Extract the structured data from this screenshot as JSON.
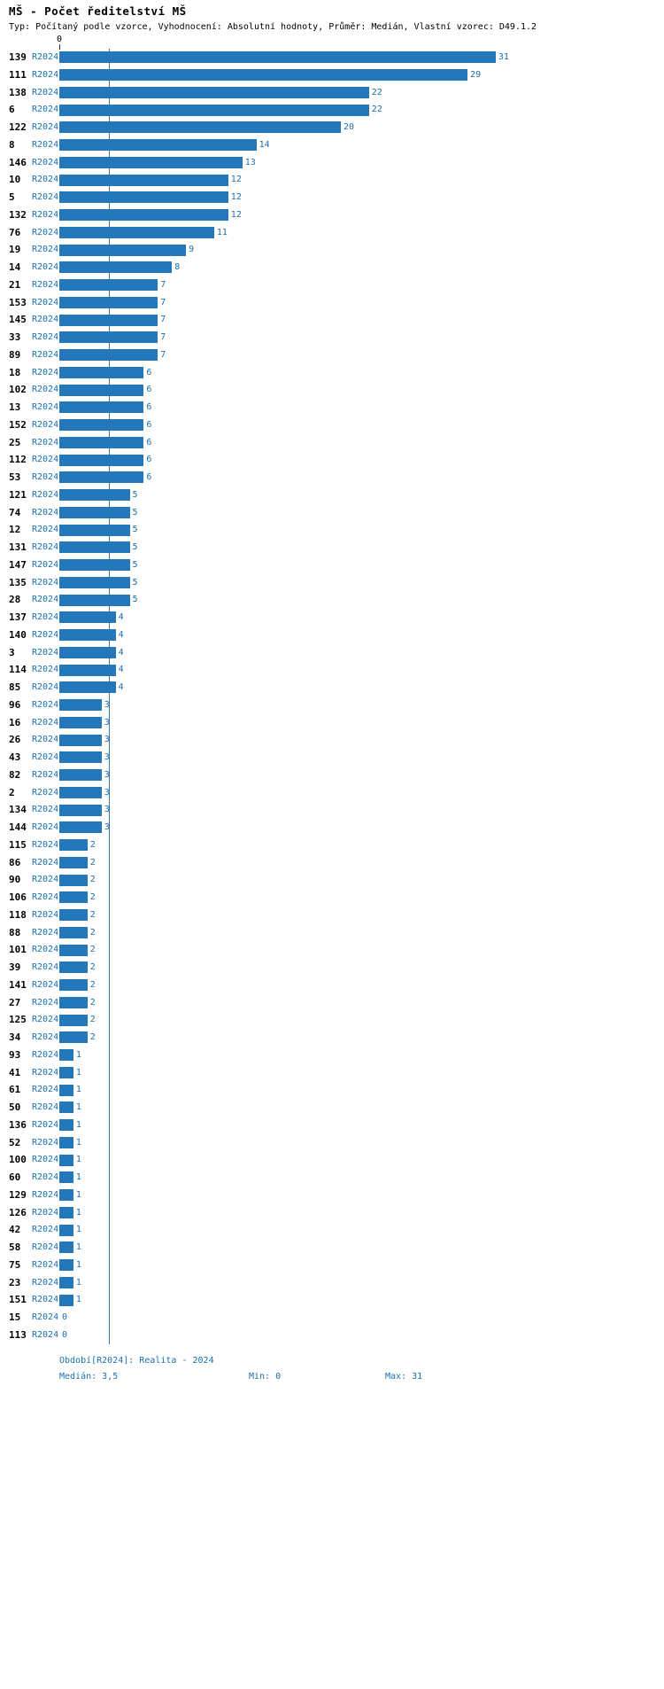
{
  "title": "MŠ - Počet ředitelství MŠ",
  "subtitle": "Typ: Počítaný podle vzorce, Vyhodnocení: Absolutní hodnoty, Průměr: Medián, Vlastní vzorec: D49.1.2",
  "axis": {
    "zero_label": "0"
  },
  "footer": {
    "period": "Období[R2024]: Realita - 2024",
    "median_label": "Medián: 3,5",
    "min_label": "Min: 0",
    "max_label": "Max: 31"
  },
  "colors": {
    "bar": "#2478b9",
    "link": "#1a6faf",
    "median_line": "#3a77ad"
  },
  "chart_data": {
    "type": "bar",
    "orientation": "horizontal",
    "title": "MŠ - Počet ředitelství MŠ",
    "series_label": "R2024",
    "xlabel": "",
    "ylabel": "",
    "xlim": [
      0,
      31
    ],
    "grid": false,
    "median": 3.5,
    "min": 0,
    "max": 31,
    "categories": [
      "139",
      "111",
      "138",
      "6",
      "122",
      "8",
      "146",
      "10",
      "5",
      "132",
      "76",
      "19",
      "14",
      "21",
      "153",
      "145",
      "33",
      "89",
      "18",
      "102",
      "13",
      "152",
      "25",
      "112",
      "53",
      "121",
      "74",
      "12",
      "131",
      "147",
      "135",
      "28",
      "137",
      "140",
      "3",
      "114",
      "85",
      "96",
      "16",
      "26",
      "43",
      "82",
      "2",
      "134",
      "144",
      "115",
      "86",
      "90",
      "106",
      "118",
      "88",
      "101",
      "39",
      "141",
      "27",
      "125",
      "34",
      "93",
      "41",
      "61",
      "50",
      "136",
      "52",
      "100",
      "60",
      "129",
      "126",
      "42",
      "58",
      "75",
      "23",
      "151",
      "15",
      "113"
    ],
    "values": [
      31,
      29,
      22,
      22,
      20,
      14,
      13,
      12,
      12,
      12,
      11,
      9,
      8,
      7,
      7,
      7,
      7,
      7,
      6,
      6,
      6,
      6,
      6,
      6,
      6,
      5,
      5,
      5,
      5,
      5,
      5,
      5,
      4,
      4,
      4,
      4,
      4,
      3,
      3,
      3,
      3,
      3,
      3,
      3,
      3,
      2,
      2,
      2,
      2,
      2,
      2,
      2,
      2,
      2,
      2,
      2,
      2,
      1,
      1,
      1,
      1,
      1,
      1,
      1,
      1,
      1,
      1,
      1,
      1,
      1,
      1,
      1,
      0,
      0
    ]
  }
}
